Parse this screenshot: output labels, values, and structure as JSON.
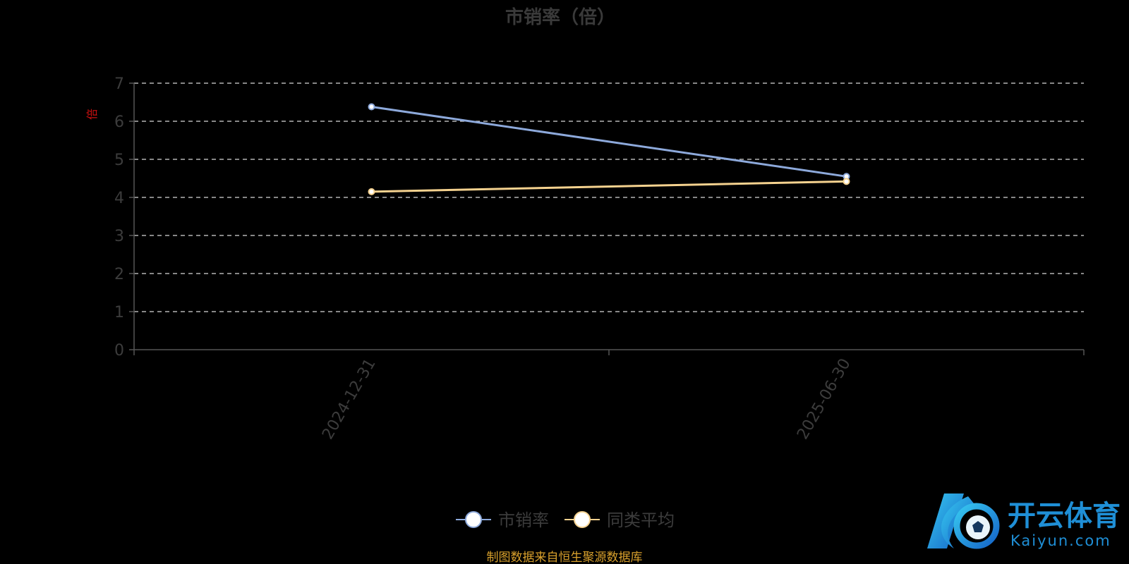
{
  "chart_data": {
    "type": "line",
    "title": "市销率（倍）",
    "ylabel": "倍",
    "xlabel": "",
    "categories": [
      "2024-12-31",
      "2025-06-30"
    ],
    "series": [
      {
        "name": "市销率",
        "values": [
          6.38,
          4.55
        ],
        "color": "#8da9db"
      },
      {
        "name": "同类平均",
        "values": [
          4.15,
          4.42
        ],
        "color": "#f5d28f"
      }
    ],
    "ylim": [
      0,
      7
    ],
    "yticks": [
      0,
      1,
      2,
      3,
      4,
      5,
      6,
      7
    ],
    "grid": true,
    "legend_position": "bottom-center"
  },
  "source_note": "制图数据来自恒生聚源数据库",
  "watermark": {
    "text_cn": "开云体育",
    "text_en": "Kaiyun.com"
  }
}
